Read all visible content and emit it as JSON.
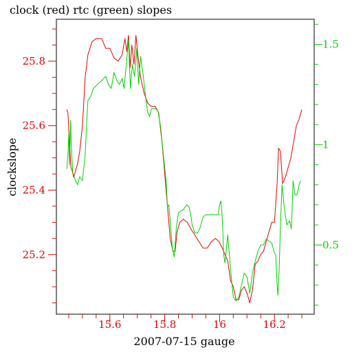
{
  "chart_data": {
    "type": "line",
    "title": "clock (red) rtc (green) slopes",
    "xlabel": "2007-07-15 gauge",
    "ylabel": "clockslope",
    "xlim": [
      15.405,
      16.345
    ],
    "ylim_left": [
      25.015,
      25.93
    ],
    "ylim_right": [
      0.155,
      1.625
    ],
    "x_ticks": [
      15.6,
      15.8,
      16.0,
      16.2
    ],
    "x_tick_labels": [
      "15.6",
      "15.8",
      "16",
      "16.2"
    ],
    "y_left_ticks": [
      25.2,
      25.4,
      25.6,
      25.8
    ],
    "y_left_tick_labels": [
      "25.2",
      "25.4",
      "25.6",
      "25.8"
    ],
    "y_right_ticks": [
      0.5,
      1.0,
      1.5
    ],
    "y_right_tick_labels": [
      "0.5",
      "1",
      "1.5"
    ],
    "grid": false,
    "legend": "none",
    "colors": {
      "left_axis": "#e00000",
      "right_axis": "#00d000",
      "frame": "#000000"
    },
    "series": [
      {
        "axis": "left",
        "color": "#e00000",
        "points": [
          [
            15.443,
            25.65
          ],
          [
            15.447,
            25.64
          ],
          [
            15.452,
            25.56
          ],
          [
            15.458,
            25.47
          ],
          [
            15.463,
            25.46
          ],
          [
            15.468,
            25.44
          ],
          [
            15.475,
            25.46
          ],
          [
            15.482,
            25.48
          ],
          [
            15.49,
            25.52
          ],
          [
            15.5,
            25.6
          ],
          [
            15.51,
            25.75
          ],
          [
            15.52,
            25.82
          ],
          [
            15.535,
            25.86
          ],
          [
            15.55,
            25.87
          ],
          [
            15.57,
            25.87
          ],
          [
            15.585,
            25.84
          ],
          [
            15.6,
            25.84
          ],
          [
            15.615,
            25.81
          ],
          [
            15.63,
            25.8
          ],
          [
            15.645,
            25.82
          ],
          [
            15.655,
            25.87
          ],
          [
            15.662,
            25.83
          ],
          [
            15.668,
            25.88
          ],
          [
            15.674,
            25.78
          ],
          [
            15.68,
            25.85
          ],
          [
            15.688,
            25.79
          ],
          [
            15.695,
            25.88
          ],
          [
            15.702,
            25.82
          ],
          [
            15.712,
            25.75
          ],
          [
            15.725,
            25.7
          ],
          [
            15.738,
            25.67
          ],
          [
            15.75,
            25.66
          ],
          [
            15.765,
            25.66
          ],
          [
            15.778,
            25.64
          ],
          [
            15.79,
            25.55
          ],
          [
            15.8,
            25.45
          ],
          [
            15.81,
            25.35
          ],
          [
            15.82,
            25.25
          ],
          [
            15.83,
            25.21
          ],
          [
            15.838,
            25.21
          ],
          [
            15.845,
            25.27
          ],
          [
            15.855,
            25.3
          ],
          [
            15.868,
            25.31
          ],
          [
            15.882,
            25.3
          ],
          [
            15.895,
            25.28
          ],
          [
            15.91,
            25.26
          ],
          [
            15.925,
            25.24
          ],
          [
            15.94,
            25.22
          ],
          [
            15.955,
            25.22
          ],
          [
            15.97,
            25.24
          ],
          [
            15.985,
            25.25
          ],
          [
            15.998,
            25.24
          ],
          [
            16.01,
            25.22
          ],
          [
            16.02,
            25.2
          ],
          [
            16.03,
            25.18
          ],
          [
            16.04,
            25.12
          ],
          [
            16.05,
            25.1
          ],
          [
            16.06,
            25.06
          ],
          [
            16.07,
            25.06
          ],
          [
            16.08,
            25.09
          ],
          [
            16.09,
            25.1
          ],
          [
            16.1,
            25.08
          ],
          [
            16.11,
            25.05
          ],
          [
            16.12,
            25.09
          ],
          [
            16.13,
            25.17
          ],
          [
            16.14,
            25.18
          ],
          [
            16.15,
            25.2
          ],
          [
            16.16,
            25.21
          ],
          [
            16.17,
            25.24
          ],
          [
            16.18,
            25.27
          ],
          [
            16.19,
            25.3
          ],
          [
            16.2,
            25.3
          ],
          [
            16.21,
            25.42
          ],
          [
            16.215,
            25.53
          ],
          [
            16.222,
            25.52
          ],
          [
            16.23,
            25.42
          ],
          [
            16.24,
            25.44
          ],
          [
            16.25,
            25.47
          ],
          [
            16.26,
            25.5
          ],
          [
            16.27,
            25.55
          ],
          [
            16.28,
            25.6
          ],
          [
            16.29,
            25.62
          ],
          [
            16.3,
            25.65
          ]
        ]
      },
      {
        "axis": "right",
        "color": "#00d000",
        "points": [
          [
            15.443,
            0.88
          ],
          [
            15.447,
            0.95
          ],
          [
            15.45,
            1.05
          ],
          [
            15.453,
            0.9
          ],
          [
            15.457,
            1.12
          ],
          [
            15.46,
            0.98
          ],
          [
            15.465,
            0.86
          ],
          [
            15.47,
            0.84
          ],
          [
            15.475,
            0.82
          ],
          [
            15.482,
            0.8
          ],
          [
            15.49,
            0.84
          ],
          [
            15.5,
            0.82
          ],
          [
            15.51,
            0.95
          ],
          [
            15.515,
            1.1
          ],
          [
            15.52,
            1.22
          ],
          [
            15.53,
            1.24
          ],
          [
            15.54,
            1.28
          ],
          [
            15.555,
            1.3
          ],
          [
            15.57,
            1.32
          ],
          [
            15.585,
            1.34
          ],
          [
            15.595,
            1.3
          ],
          [
            15.605,
            1.28
          ],
          [
            15.615,
            1.36
          ],
          [
            15.625,
            1.32
          ],
          [
            15.635,
            1.3
          ],
          [
            15.645,
            1.33
          ],
          [
            15.652,
            1.28
          ],
          [
            15.66,
            1.4
          ],
          [
            15.668,
            1.52
          ],
          [
            15.675,
            1.28
          ],
          [
            15.682,
            1.4
          ],
          [
            15.69,
            1.34
          ],
          [
            15.698,
            1.48
          ],
          [
            15.705,
            1.3
          ],
          [
            15.712,
            1.44
          ],
          [
            15.722,
            1.34
          ],
          [
            15.73,
            1.24
          ],
          [
            15.738,
            1.16
          ],
          [
            15.745,
            1.14
          ],
          [
            15.752,
            1.18
          ],
          [
            15.765,
            1.18
          ],
          [
            15.775,
            1.17
          ],
          [
            15.785,
            1.09
          ],
          [
            15.795,
            0.95
          ],
          [
            15.805,
            0.82
          ],
          [
            15.81,
            0.69
          ],
          [
            15.815,
            0.7
          ],
          [
            15.82,
            0.62
          ],
          [
            15.828,
            0.48
          ],
          [
            15.835,
            0.44
          ],
          [
            15.842,
            0.58
          ],
          [
            15.85,
            0.66
          ],
          [
            15.86,
            0.67
          ],
          [
            15.87,
            0.68
          ],
          [
            15.88,
            0.7
          ],
          [
            15.888,
            0.69
          ],
          [
            15.895,
            0.65
          ],
          [
            15.9,
            0.6
          ],
          [
            15.91,
            0.56
          ],
          [
            15.92,
            0.56
          ],
          [
            15.93,
            0.59
          ],
          [
            15.94,
            0.64
          ],
          [
            15.95,
            0.65
          ],
          [
            15.965,
            0.65
          ],
          [
            15.975,
            0.65
          ],
          [
            15.985,
            0.65
          ],
          [
            15.995,
            0.65
          ],
          [
            16.0,
            0.7
          ],
          [
            16.005,
            0.72
          ],
          [
            16.01,
            0.63
          ],
          [
            16.015,
            0.45
          ],
          [
            16.02,
            0.41
          ],
          [
            16.03,
            0.55
          ],
          [
            16.04,
            0.38
          ],
          [
            16.05,
            0.24
          ],
          [
            16.06,
            0.22
          ],
          [
            16.07,
            0.24
          ],
          [
            16.08,
            0.3
          ],
          [
            16.09,
            0.36
          ],
          [
            16.1,
            0.34
          ],
          [
            16.11,
            0.26
          ],
          [
            16.12,
            0.36
          ],
          [
            16.13,
            0.42
          ],
          [
            16.14,
            0.47
          ],
          [
            16.15,
            0.5
          ],
          [
            16.16,
            0.5
          ],
          [
            16.17,
            0.53
          ],
          [
            16.18,
            0.52
          ],
          [
            16.19,
            0.51
          ],
          [
            16.2,
            0.46
          ],
          [
            16.205,
            0.45
          ],
          [
            16.21,
            0.3
          ],
          [
            16.213,
            0.25
          ],
          [
            16.218,
            0.4
          ],
          [
            16.222,
            0.6
          ],
          [
            16.228,
            0.8
          ],
          [
            16.235,
            0.7
          ],
          [
            16.245,
            0.6
          ],
          [
            16.255,
            0.62
          ],
          [
            16.262,
            0.58
          ],
          [
            16.268,
            0.82
          ],
          [
            16.275,
            0.75
          ],
          [
            16.282,
            0.75
          ],
          [
            16.29,
            0.8
          ],
          [
            16.295,
            0.82
          ]
        ]
      }
    ]
  }
}
